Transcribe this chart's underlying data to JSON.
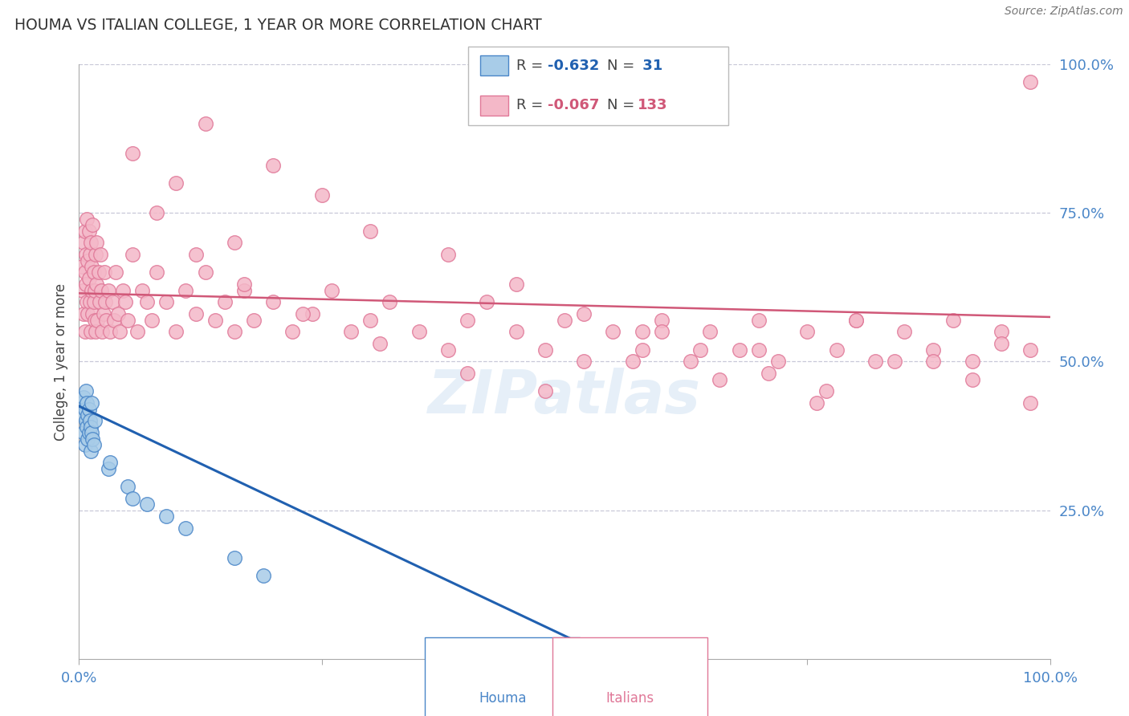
{
  "title": "HOUMA VS ITALIAN COLLEGE, 1 YEAR OR MORE CORRELATION CHART",
  "source_text": "Source: ZipAtlas.com",
  "ylabel": "College, 1 year or more",
  "xlim": [
    0.0,
    1.0
  ],
  "ylim": [
    0.0,
    1.0
  ],
  "ytick_positions": [
    1.0,
    0.75,
    0.5,
    0.25
  ],
  "yticklabels": [
    "100.0%",
    "75.0%",
    "50.0%",
    "25.0%"
  ],
  "legend_r1": "-0.632",
  "legend_n1": "31",
  "legend_r2": "-0.067",
  "legend_n2": "133",
  "houma_color": "#a8cce8",
  "italian_color": "#f4b8c8",
  "houma_edge_color": "#4a86c8",
  "italian_edge_color": "#e07898",
  "regression_blue": "#2060b0",
  "regression_pink": "#d05878",
  "grid_color": "#c8c8d8",
  "background_color": "#ffffff",
  "houma_x": [
    0.003,
    0.004,
    0.005,
    0.005,
    0.006,
    0.006,
    0.007,
    0.007,
    0.008,
    0.008,
    0.009,
    0.009,
    0.01,
    0.01,
    0.011,
    0.012,
    0.012,
    0.013,
    0.013,
    0.014,
    0.015,
    0.016,
    0.03,
    0.032,
    0.05,
    0.055,
    0.07,
    0.09,
    0.11,
    0.16,
    0.19
  ],
  "houma_y": [
    0.43,
    0.41,
    0.44,
    0.38,
    0.42,
    0.36,
    0.4,
    0.45,
    0.39,
    0.43,
    0.37,
    0.41,
    0.42,
    0.38,
    0.4,
    0.35,
    0.39,
    0.38,
    0.43,
    0.37,
    0.36,
    0.4,
    0.32,
    0.33,
    0.29,
    0.27,
    0.26,
    0.24,
    0.22,
    0.17,
    0.14
  ],
  "italian_x": [
    0.003,
    0.004,
    0.005,
    0.005,
    0.006,
    0.006,
    0.006,
    0.007,
    0.007,
    0.008,
    0.008,
    0.009,
    0.009,
    0.01,
    0.01,
    0.011,
    0.011,
    0.012,
    0.012,
    0.013,
    0.013,
    0.014,
    0.014,
    0.015,
    0.015,
    0.016,
    0.016,
    0.017,
    0.017,
    0.018,
    0.018,
    0.019,
    0.02,
    0.021,
    0.022,
    0.023,
    0.024,
    0.025,
    0.026,
    0.027,
    0.028,
    0.03,
    0.032,
    0.034,
    0.036,
    0.038,
    0.04,
    0.042,
    0.045,
    0.048,
    0.05,
    0.055,
    0.06,
    0.065,
    0.07,
    0.075,
    0.08,
    0.09,
    0.1,
    0.11,
    0.12,
    0.13,
    0.14,
    0.15,
    0.16,
    0.17,
    0.18,
    0.2,
    0.22,
    0.24,
    0.26,
    0.28,
    0.3,
    0.32,
    0.35,
    0.38,
    0.4,
    0.42,
    0.45,
    0.48,
    0.5,
    0.52,
    0.55,
    0.58,
    0.6,
    0.63,
    0.65,
    0.68,
    0.7,
    0.72,
    0.75,
    0.78,
    0.8,
    0.82,
    0.85,
    0.88,
    0.9,
    0.92,
    0.95,
    0.98,
    0.055,
    0.08,
    0.1,
    0.13,
    0.16,
    0.2,
    0.25,
    0.3,
    0.38,
    0.45,
    0.52,
    0.6,
    0.7,
    0.8,
    0.88,
    0.95,
    0.12,
    0.17,
    0.23,
    0.31,
    0.4,
    0.48,
    0.57,
    0.66,
    0.76,
    0.84,
    0.92,
    0.98,
    0.58,
    0.64,
    0.71,
    0.77,
    0.98
  ],
  "italian_y": [
    0.66,
    0.62,
    0.7,
    0.58,
    0.65,
    0.72,
    0.55,
    0.63,
    0.68,
    0.6,
    0.74,
    0.58,
    0.67,
    0.64,
    0.72,
    0.6,
    0.68,
    0.55,
    0.7,
    0.62,
    0.66,
    0.58,
    0.73,
    0.6,
    0.65,
    0.57,
    0.62,
    0.68,
    0.55,
    0.63,
    0.7,
    0.57,
    0.65,
    0.6,
    0.68,
    0.62,
    0.55,
    0.58,
    0.65,
    0.6,
    0.57,
    0.62,
    0.55,
    0.6,
    0.57,
    0.65,
    0.58,
    0.55,
    0.62,
    0.6,
    0.57,
    0.68,
    0.55,
    0.62,
    0.6,
    0.57,
    0.65,
    0.6,
    0.55,
    0.62,
    0.58,
    0.65,
    0.57,
    0.6,
    0.55,
    0.62,
    0.57,
    0.6,
    0.55,
    0.58,
    0.62,
    0.55,
    0.57,
    0.6,
    0.55,
    0.52,
    0.57,
    0.6,
    0.55,
    0.52,
    0.57,
    0.5,
    0.55,
    0.52,
    0.57,
    0.5,
    0.55,
    0.52,
    0.57,
    0.5,
    0.55,
    0.52,
    0.57,
    0.5,
    0.55,
    0.52,
    0.57,
    0.5,
    0.55,
    0.52,
    0.85,
    0.75,
    0.8,
    0.9,
    0.7,
    0.83,
    0.78,
    0.72,
    0.68,
    0.63,
    0.58,
    0.55,
    0.52,
    0.57,
    0.5,
    0.53,
    0.68,
    0.63,
    0.58,
    0.53,
    0.48,
    0.45,
    0.5,
    0.47,
    0.43,
    0.5,
    0.47,
    0.43,
    0.55,
    0.52,
    0.48,
    0.45,
    0.97
  ],
  "blue_line_x": [
    0.0,
    0.55
  ],
  "blue_line_y": [
    0.425,
    0.0
  ],
  "pink_line_x": [
    0.0,
    1.0
  ],
  "pink_line_y": [
    0.615,
    0.575
  ]
}
